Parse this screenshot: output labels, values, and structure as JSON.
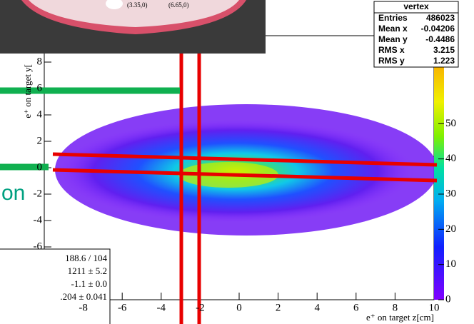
{
  "chart_data": {
    "type": "heatmap",
    "xlabel": "e⁺ on target z[cm]",
    "ylabel": "e⁺ on target y[",
    "xlim": [
      -10,
      10
    ],
    "xticks": [
      -8,
      -6,
      -4,
      -2,
      0,
      2,
      4,
      6,
      8,
      10
    ],
    "ylim": [
      -10,
      10
    ],
    "yticks": [
      -6,
      -4,
      -2,
      0,
      2,
      4,
      6,
      8
    ],
    "zlim": [
      0,
      75
    ],
    "zticks": [
      0,
      10,
      20,
      30,
      40,
      50
    ],
    "stats": {
      "title": "vertex",
      "rows": [
        {
          "name": "Entries",
          "value": 486023
        },
        {
          "name": "Mean x",
          "value": -0.04206
        },
        {
          "name": "Mean y",
          "value": -0.4486
        },
        {
          "name": "RMS x",
          "value": 3.215
        },
        {
          "name": "RMS y",
          "value": 1.223
        }
      ]
    },
    "fit_box": [
      "188.6 / 104",
      "1211 ± 5.2",
      "-1.1 ± 0.0",
      ".204 ± 0.041"
    ],
    "photo_labels": [
      "(3.35,0)",
      "(6.65,0)"
    ],
    "side_text": "on"
  }
}
